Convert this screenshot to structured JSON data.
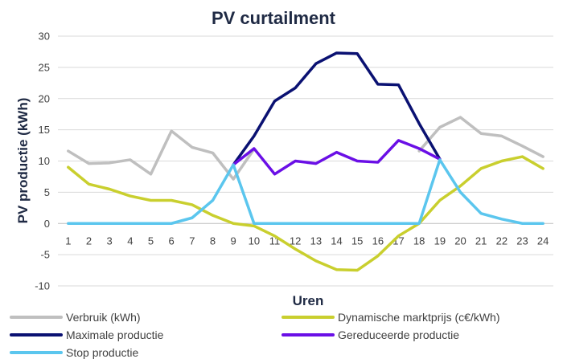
{
  "chart_data": {
    "type": "line",
    "title": "PV curtailment",
    "xlabel": "Uren",
    "ylabel": "PV productie (kWh)",
    "ylim": [
      -10,
      30
    ],
    "yticks": [
      -10,
      -5,
      0,
      5,
      10,
      15,
      20,
      25,
      30
    ],
    "categories": [
      "1",
      "2",
      "3",
      "4",
      "5",
      "6",
      "7",
      "8",
      "9",
      "10",
      "11",
      "12",
      "13",
      "14",
      "15",
      "16",
      "17",
      "18",
      "19",
      "20",
      "21",
      "22",
      "23",
      "24"
    ],
    "grid": true,
    "legend_position": "bottom",
    "series": [
      {
        "name": "Verbruik (kWh)",
        "color": "#bfbfbf",
        "values": [
          11.6,
          9.6,
          9.7,
          10.2,
          7.9,
          14.8,
          12.2,
          11.3,
          7.1,
          11.9,
          null,
          null,
          null,
          null,
          null,
          null,
          null,
          11.6,
          15.4,
          17.0,
          14.4,
          14.0,
          12.4,
          10.7
        ]
      },
      {
        "name": "Dynamische marktprijs (c€/kWh)",
        "color": "#c9cf2e",
        "values": [
          9.0,
          6.3,
          5.5,
          4.4,
          3.7,
          3.7,
          3.0,
          1.3,
          0.0,
          -0.4,
          -2.0,
          -4.1,
          -6.0,
          -7.4,
          -7.5,
          -5.2,
          -2.0,
          0.0,
          3.7,
          6.0,
          8.8,
          10.0,
          10.7,
          8.8
        ]
      },
      {
        "name": "Maximale productie",
        "color": "#0a1172",
        "values": [
          null,
          null,
          null,
          null,
          null,
          null,
          null,
          null,
          9.4,
          14.0,
          19.6,
          21.7,
          25.6,
          27.3,
          27.2,
          22.3,
          22.2,
          16.0,
          10.3,
          null,
          null,
          null,
          null,
          null
        ]
      },
      {
        "name": "Gereduceerde productie",
        "color": "#6a0fe6",
        "values": [
          null,
          null,
          null,
          null,
          null,
          null,
          null,
          null,
          9.4,
          12.0,
          7.9,
          10.0,
          9.6,
          11.4,
          10.0,
          9.8,
          13.3,
          12.0,
          10.3,
          null,
          null,
          null,
          null,
          null
        ]
      },
      {
        "name": "Stop productie",
        "color": "#5bc6ee",
        "values": [
          0,
          0,
          0,
          0,
          0,
          0,
          0.9,
          3.7,
          9.4,
          0,
          0,
          0,
          0,
          0,
          0,
          0,
          0,
          0,
          10.2,
          5.0,
          1.6,
          0.7,
          0,
          0
        ]
      }
    ]
  }
}
